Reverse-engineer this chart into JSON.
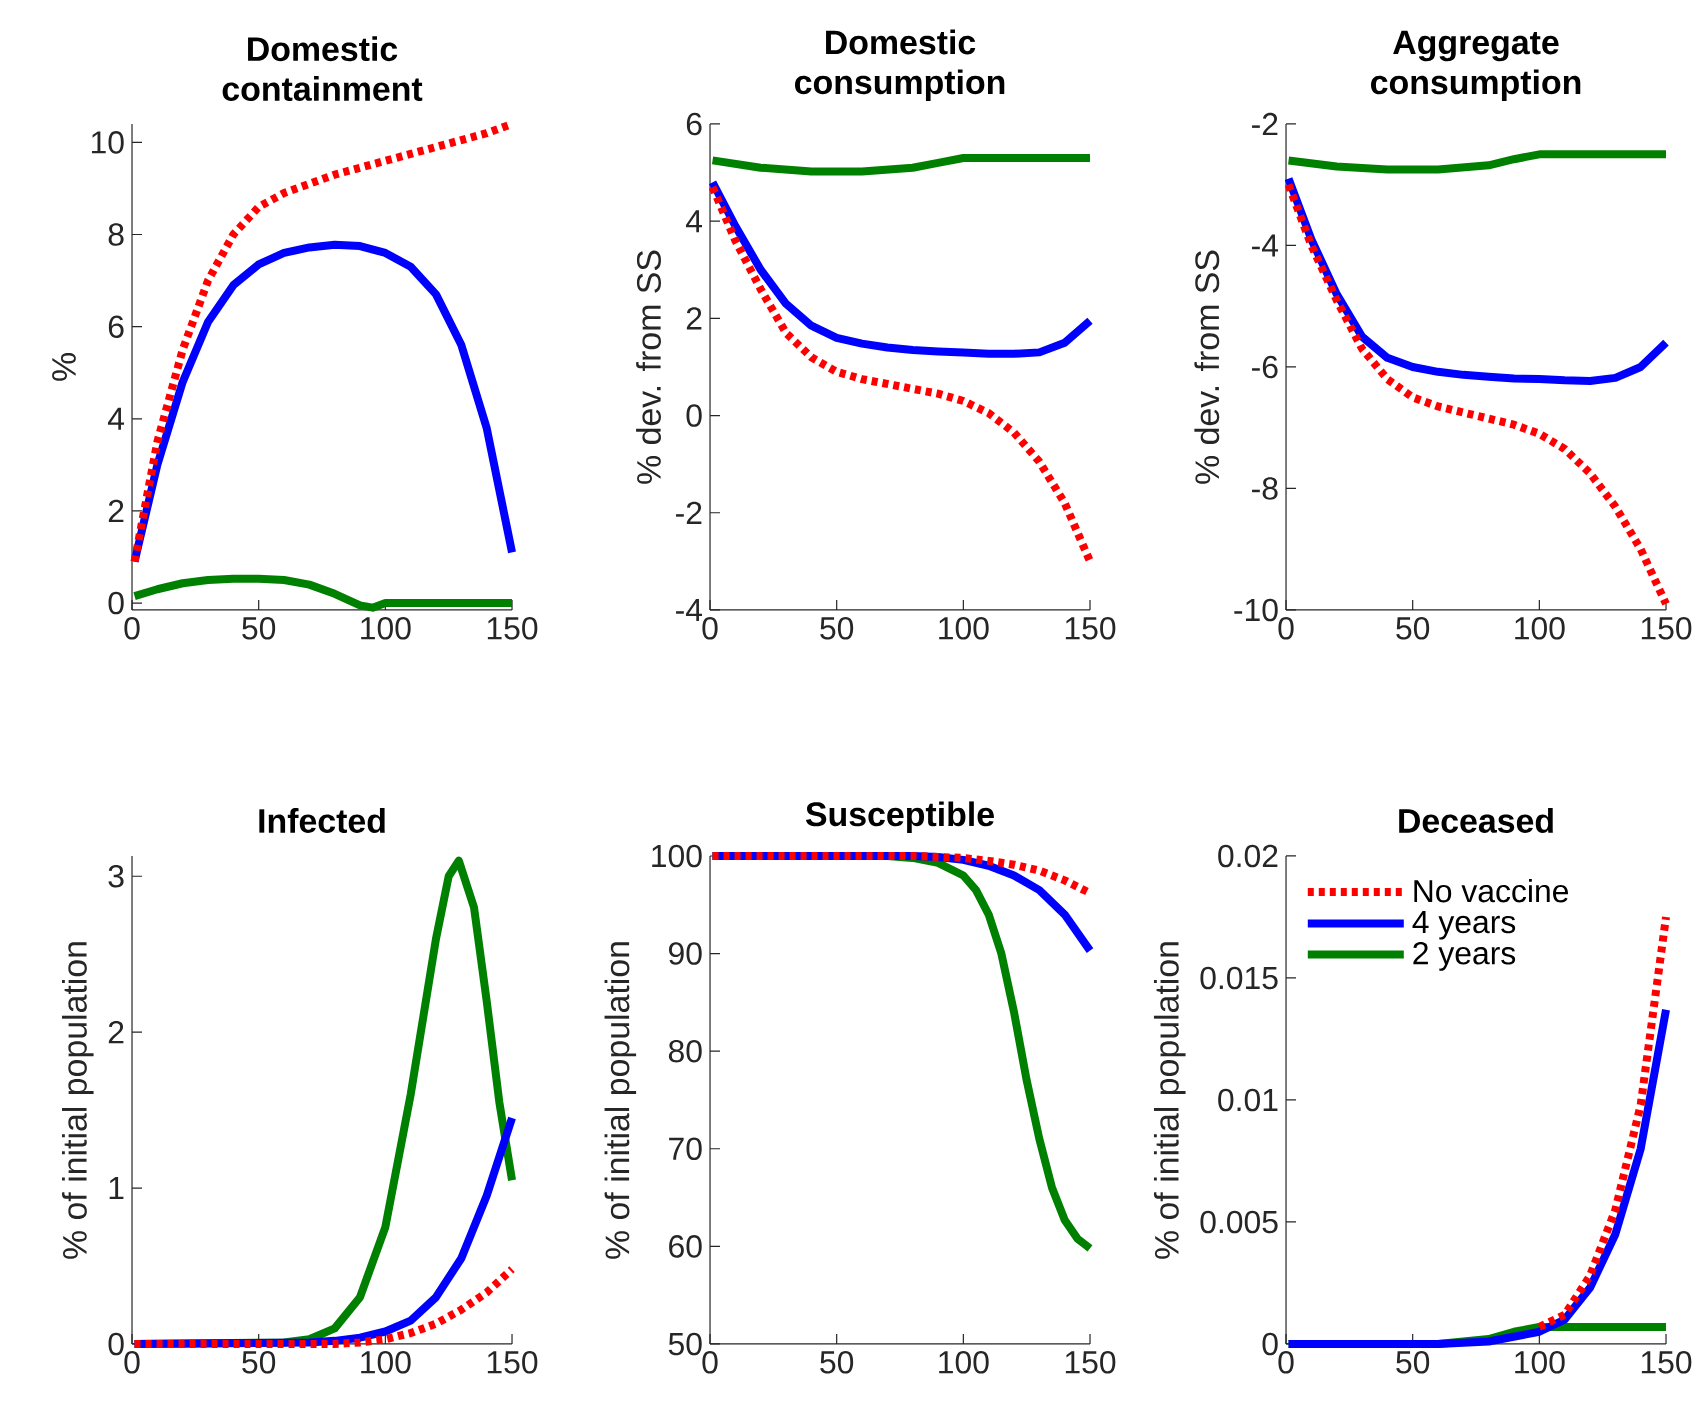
{
  "chart_data": [
    {
      "type": "line",
      "title": "Domestic containment",
      "ylabel": "%",
      "xlim": [
        0,
        150
      ],
      "xticks": [
        0,
        50,
        100,
        150
      ],
      "ylim": [
        -0.15,
        10.4
      ],
      "yticks": [
        0,
        2,
        4,
        6,
        8,
        10
      ],
      "series": [
        {
          "color": "#ff0000",
          "line_style": "dotted",
          "x": [
            1,
            10,
            20,
            30,
            40,
            50,
            60,
            70,
            80,
            90,
            100,
            110,
            120,
            130,
            140,
            150
          ],
          "values": [
            0.9,
            3.5,
            5.5,
            7.0,
            8.0,
            8.6,
            8.9,
            9.1,
            9.3,
            9.45,
            9.6,
            9.75,
            9.9,
            10.05,
            10.2,
            10.4
          ]
        },
        {
          "color": "#0000ff",
          "line_style": "solid",
          "x": [
            1,
            10,
            20,
            30,
            40,
            50,
            60,
            70,
            80,
            90,
            100,
            110,
            120,
            130,
            140,
            150
          ],
          "values": [
            0.9,
            3.0,
            4.8,
            6.1,
            6.9,
            7.35,
            7.6,
            7.72,
            7.78,
            7.75,
            7.6,
            7.3,
            6.7,
            5.6,
            3.8,
            1.1
          ]
        },
        {
          "color": "#008000",
          "line_style": "solid",
          "x": [
            1,
            10,
            20,
            30,
            40,
            50,
            60,
            70,
            80,
            90,
            95,
            100,
            110,
            150
          ],
          "values": [
            0.15,
            0.3,
            0.43,
            0.5,
            0.53,
            0.53,
            0.5,
            0.4,
            0.2,
            -0.05,
            -0.1,
            0.0,
            0.0,
            0.0
          ]
        }
      ]
    },
    {
      "type": "line",
      "title": "Domestic consumption",
      "ylabel": "% dev. from SS",
      "xlim": [
        0,
        150
      ],
      "xticks": [
        0,
        50,
        100,
        150
      ],
      "ylim": [
        -4,
        6
      ],
      "yticks": [
        -4,
        -2,
        0,
        2,
        4,
        6
      ],
      "series": [
        {
          "color": "#ff0000",
          "line_style": "dotted",
          "x": [
            1,
            10,
            20,
            30,
            40,
            50,
            60,
            70,
            80,
            90,
            100,
            110,
            120,
            130,
            140,
            150
          ],
          "values": [
            4.7,
            3.6,
            2.6,
            1.7,
            1.2,
            0.9,
            0.75,
            0.65,
            0.55,
            0.45,
            0.3,
            0.05,
            -0.35,
            -0.95,
            -1.8,
            -3.0
          ]
        },
        {
          "color": "#0000ff",
          "line_style": "solid",
          "x": [
            1,
            10,
            20,
            30,
            40,
            50,
            60,
            70,
            80,
            90,
            100,
            110,
            120,
            130,
            140,
            150
          ],
          "values": [
            4.8,
            3.9,
            3.0,
            2.3,
            1.85,
            1.6,
            1.48,
            1.4,
            1.35,
            1.32,
            1.3,
            1.27,
            1.27,
            1.3,
            1.5,
            1.95
          ]
        },
        {
          "color": "#008000",
          "line_style": "solid",
          "x": [
            1,
            20,
            40,
            60,
            80,
            90,
            100,
            150
          ],
          "values": [
            5.25,
            5.1,
            5.02,
            5.02,
            5.1,
            5.2,
            5.3,
            5.3
          ]
        }
      ]
    },
    {
      "type": "line",
      "title": "Aggregate consumption",
      "ylabel": "% dev. from SS",
      "xlim": [
        0,
        150
      ],
      "xticks": [
        0,
        50,
        100,
        150
      ],
      "ylim": [
        -10,
        -2
      ],
      "yticks": [
        -10,
        -8,
        -6,
        -4,
        -2
      ],
      "series": [
        {
          "color": "#ff0000",
          "line_style": "dotted",
          "x": [
            1,
            10,
            20,
            30,
            40,
            50,
            60,
            70,
            80,
            90,
            100,
            110,
            120,
            130,
            140,
            150
          ],
          "values": [
            -3.0,
            -4.0,
            -4.9,
            -5.7,
            -6.2,
            -6.5,
            -6.65,
            -6.75,
            -6.85,
            -6.95,
            -7.1,
            -7.35,
            -7.75,
            -8.3,
            -9.0,
            -9.9
          ]
        },
        {
          "color": "#0000ff",
          "line_style": "solid",
          "x": [
            1,
            10,
            20,
            30,
            40,
            50,
            60,
            70,
            80,
            90,
            100,
            110,
            120,
            130,
            140,
            150
          ],
          "values": [
            -2.9,
            -3.9,
            -4.8,
            -5.5,
            -5.85,
            -6.0,
            -6.08,
            -6.13,
            -6.16,
            -6.19,
            -6.2,
            -6.22,
            -6.23,
            -6.18,
            -6.0,
            -5.6
          ]
        },
        {
          "color": "#008000",
          "line_style": "solid",
          "x": [
            1,
            20,
            40,
            60,
            80,
            90,
            100,
            150
          ],
          "values": [
            -2.6,
            -2.7,
            -2.75,
            -2.75,
            -2.68,
            -2.58,
            -2.5,
            -2.5
          ]
        }
      ]
    },
    {
      "type": "line",
      "title": "Infected",
      "ylabel": "% of initial population",
      "xlim": [
        0,
        150
      ],
      "xticks": [
        0,
        50,
        100,
        150
      ],
      "ylim": [
        0,
        3.13
      ],
      "yticks": [
        0,
        1,
        2,
        3
      ],
      "series": [
        {
          "color": "#ff0000",
          "line_style": "dotted",
          "x": [
            1,
            80,
            90,
            100,
            110,
            120,
            130,
            140,
            150
          ],
          "values": [
            0,
            0,
            0.01,
            0.03,
            0.07,
            0.13,
            0.22,
            0.33,
            0.48
          ]
        },
        {
          "color": "#0000ff",
          "line_style": "solid",
          "x": [
            1,
            70,
            80,
            90,
            100,
            110,
            120,
            130,
            140,
            150
          ],
          "values": [
            0,
            0.01,
            0.02,
            0.04,
            0.08,
            0.15,
            0.3,
            0.55,
            0.95,
            1.45
          ]
        },
        {
          "color": "#008000",
          "line_style": "solid",
          "x": [
            1,
            60,
            70,
            80,
            90,
            100,
            110,
            120,
            125,
            129,
            135,
            140,
            145,
            150
          ],
          "values": [
            0,
            0.01,
            0.03,
            0.1,
            0.3,
            0.75,
            1.6,
            2.6,
            3.0,
            3.1,
            2.8,
            2.2,
            1.55,
            1.05
          ]
        }
      ]
    },
    {
      "type": "line",
      "title": "Susceptible",
      "ylabel": "% of initial population",
      "xlim": [
        0,
        150
      ],
      "xticks": [
        0,
        50,
        100,
        150
      ],
      "ylim": [
        50,
        100
      ],
      "yticks": [
        50,
        60,
        70,
        80,
        90,
        100
      ],
      "series": [
        {
          "color": "#ff0000",
          "line_style": "dotted",
          "x": [
            1,
            80,
            100,
            110,
            120,
            130,
            140,
            150
          ],
          "values": [
            100,
            100,
            99.8,
            99.5,
            99.1,
            98.5,
            97.5,
            96.2
          ]
        },
        {
          "color": "#0000ff",
          "line_style": "solid",
          "x": [
            1,
            80,
            90,
            100,
            110,
            120,
            130,
            140,
            150
          ],
          "values": [
            100,
            100,
            99.9,
            99.6,
            99.0,
            98.0,
            96.5,
            94.0,
            90.3
          ]
        },
        {
          "color": "#008000",
          "line_style": "solid",
          "x": [
            1,
            70,
            80,
            90,
            100,
            105,
            110,
            115,
            120,
            125,
            130,
            135,
            140,
            145,
            150
          ],
          "values": [
            100,
            100,
            99.8,
            99.3,
            98.0,
            96.5,
            94,
            90,
            84,
            77,
            71,
            66,
            62.7,
            60.8,
            59.8
          ]
        }
      ]
    },
    {
      "type": "line",
      "title": "Deceased",
      "ylabel": "% of initial population",
      "xlim": [
        0,
        150
      ],
      "xticks": [
        0,
        50,
        100,
        150
      ],
      "ylim": [
        0,
        0.02
      ],
      "yticks": [
        0,
        0.005,
        0.01,
        0.015,
        0.02
      ],
      "legend": "top left",
      "series": [
        {
          "name": "No vaccine",
          "color": "#ff0000",
          "line_style": "dotted",
          "x": [
            100,
            110,
            120,
            130,
            140,
            150
          ],
          "values": [
            0.0007,
            0.0012,
            0.0028,
            0.0055,
            0.0098,
            0.0175
          ]
        },
        {
          "name": "4 years",
          "color": "#0000ff",
          "line_style": "solid",
          "x": [
            1,
            60,
            80,
            100,
            110,
            120,
            130,
            140,
            150
          ],
          "values": [
            0,
            0,
            0.0001,
            0.0005,
            0.001,
            0.0023,
            0.0045,
            0.008,
            0.0137
          ]
        },
        {
          "name": "2 years",
          "color": "#008000",
          "line_style": "solid",
          "x": [
            1,
            60,
            80,
            90,
            100,
            150
          ],
          "values": [
            0,
            0,
            0.0002,
            0.0005,
            0.0007,
            0.0007
          ]
        }
      ]
    }
  ]
}
